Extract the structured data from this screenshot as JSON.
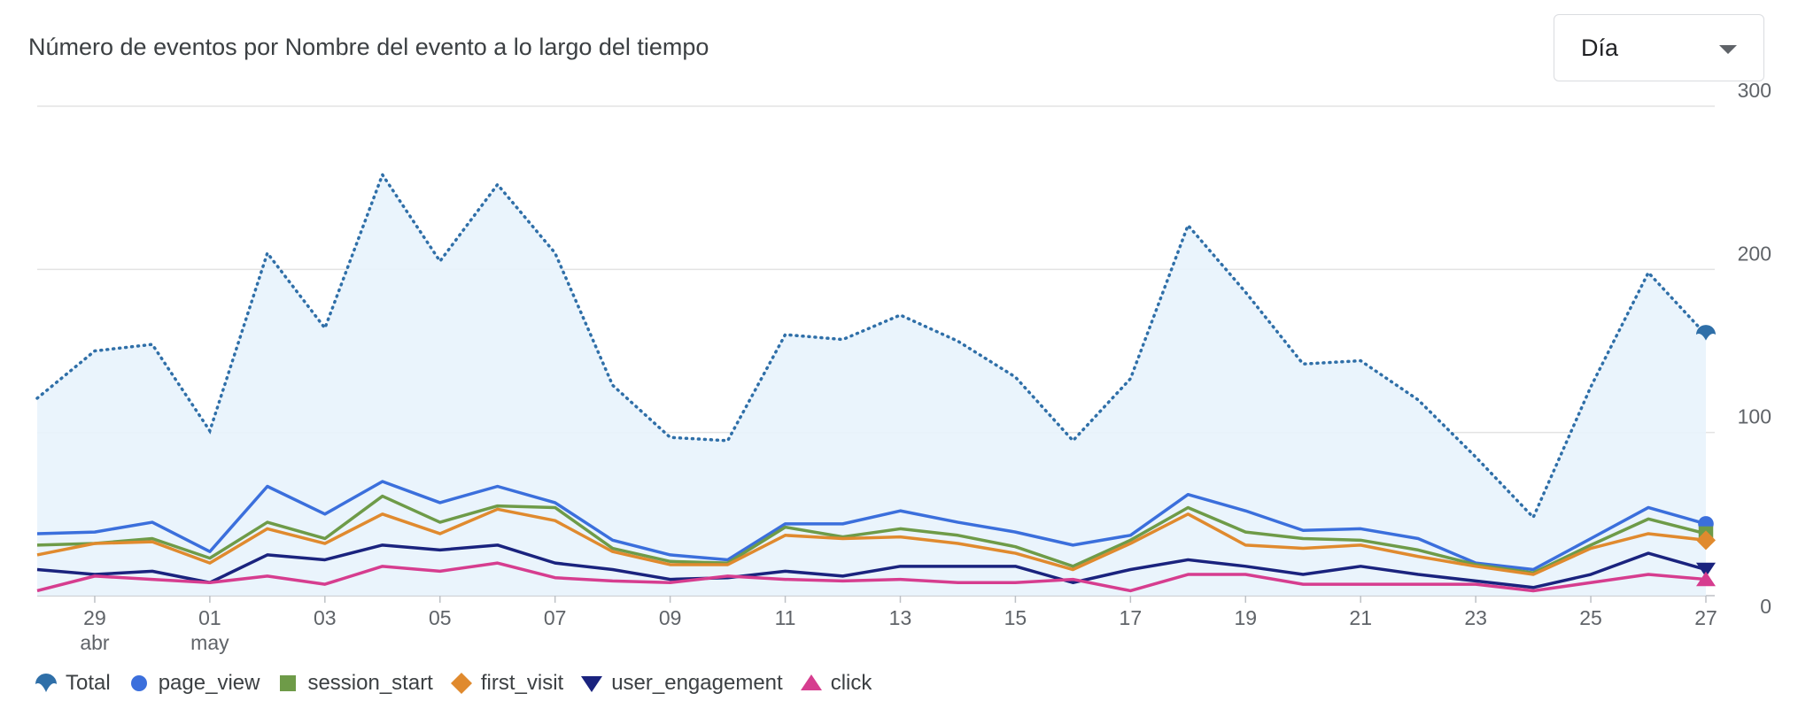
{
  "title": "Número de eventos por Nombre del evento a lo largo del tiempo",
  "granularity_select": {
    "value": "Día",
    "icon": "chevron-down-icon"
  },
  "chart_data": {
    "type": "line",
    "x": [
      "28 abr",
      "29 abr",
      "30 abr",
      "01 may",
      "02 may",
      "03 may",
      "04 may",
      "05 may",
      "06 may",
      "07 may",
      "08 may",
      "09 may",
      "10 may",
      "11 may",
      "12 may",
      "13 may",
      "14 may",
      "15 may",
      "16 may",
      "17 may",
      "18 may",
      "19 may",
      "20 may",
      "21 may",
      "22 may",
      "23 may",
      "24 may",
      "25 may",
      "26 may",
      "27 may"
    ],
    "x_tick_labels": [
      {
        "index": 1,
        "day": "29",
        "month": "abr"
      },
      {
        "index": 3,
        "day": "01",
        "month": "may"
      },
      {
        "index": 5,
        "day": "03",
        "month": ""
      },
      {
        "index": 7,
        "day": "05",
        "month": ""
      },
      {
        "index": 9,
        "day": "07",
        "month": ""
      },
      {
        "index": 11,
        "day": "09",
        "month": ""
      },
      {
        "index": 13,
        "day": "11",
        "month": ""
      },
      {
        "index": 15,
        "day": "13",
        "month": ""
      },
      {
        "index": 17,
        "day": "15",
        "month": ""
      },
      {
        "index": 19,
        "day": "17",
        "month": ""
      },
      {
        "index": 21,
        "day": "19",
        "month": ""
      },
      {
        "index": 23,
        "day": "21",
        "month": ""
      },
      {
        "index": 25,
        "day": "23",
        "month": ""
      },
      {
        "index": 27,
        "day": "25",
        "month": ""
      },
      {
        "index": 29,
        "day": "27",
        "month": ""
      }
    ],
    "y_ticks": [
      "0",
      "100",
      "200",
      "300"
    ],
    "ylim": [
      0,
      300
    ],
    "y_axis_side": "right",
    "grid": true,
    "legend_position": "bottom-left",
    "series": [
      {
        "name": "Total",
        "color": "#2f6fa8",
        "style": "dotted-area",
        "marker": "umbrella-icon",
        "values": [
          121,
          150,
          154,
          101,
          210,
          164,
          258,
          205,
          252,
          210,
          129,
          97,
          95,
          160,
          157,
          172,
          156,
          134,
          95,
          133,
          227,
          186,
          142,
          144,
          120,
          85,
          48,
          128,
          198,
          160
        ]
      },
      {
        "name": "page_view",
        "color": "#3b6fdc",
        "style": "solid",
        "marker": "circle",
        "values": [
          38,
          39,
          45,
          27,
          67,
          50,
          70,
          57,
          67,
          57,
          34,
          25,
          22,
          44,
          44,
          52,
          45,
          39,
          31,
          37,
          62,
          52,
          40,
          41,
          35,
          20,
          16,
          35,
          54,
          44
        ]
      },
      {
        "name": "session_start",
        "color": "#6e9b48",
        "style": "solid",
        "marker": "square",
        "values": [
          31,
          32,
          35,
          23,
          45,
          35,
          61,
          45,
          55,
          54,
          29,
          21,
          20,
          42,
          36,
          41,
          37,
          30,
          18,
          34,
          54,
          39,
          35,
          34,
          28,
          19,
          14,
          31,
          47,
          38
        ]
      },
      {
        "name": "first_visit",
        "color": "#e08a2e",
        "style": "solid",
        "marker": "diamond",
        "values": [
          25,
          32,
          33,
          20,
          41,
          32,
          50,
          38,
          53,
          46,
          27,
          19,
          19,
          37,
          35,
          36,
          32,
          26,
          16,
          32,
          50,
          31,
          29,
          31,
          24,
          18,
          13,
          29,
          38,
          34
        ]
      },
      {
        "name": "user_engagement",
        "color": "#1a237e",
        "style": "solid",
        "marker": "triangle-down",
        "values": [
          16,
          13,
          15,
          8,
          25,
          22,
          31,
          28,
          31,
          20,
          16,
          10,
          11,
          15,
          12,
          18,
          18,
          18,
          8,
          16,
          22,
          18,
          13,
          18,
          13,
          9,
          5,
          13,
          26,
          16
        ]
      },
      {
        "name": "click",
        "color": "#d63d8f",
        "style": "solid",
        "marker": "triangle-up",
        "values": [
          3,
          12,
          10,
          8,
          12,
          7,
          18,
          15,
          20,
          11,
          9,
          8,
          12,
          10,
          9,
          10,
          8,
          8,
          10,
          3,
          13,
          13,
          7,
          7,
          7,
          7,
          3,
          8,
          13,
          10
        ]
      }
    ]
  }
}
